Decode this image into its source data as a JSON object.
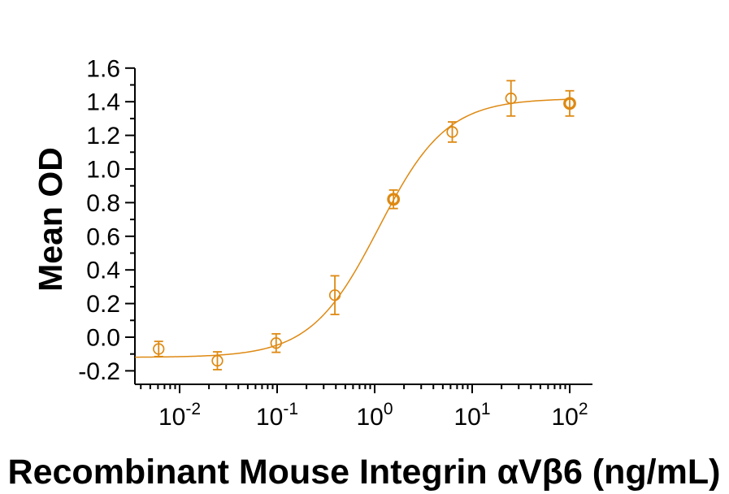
{
  "chart_data": {
    "type": "scatter",
    "subtype": "dose-response-curve",
    "title": "",
    "xlabel": "Recombinant Mouse Integrin αVβ6 (ng/mL)",
    "ylabel": "Mean OD",
    "x_scale": "log",
    "y_scale": "linear",
    "xlim_log10": [
      -2.46,
      2.23
    ],
    "ylim": [
      -0.32,
      1.6
    ],
    "grid": false,
    "legend": null,
    "y_ticks": {
      "major_values": [
        -0.2,
        0.0,
        0.2,
        0.4,
        0.6,
        0.8,
        1.0,
        1.2,
        1.4,
        1.6
      ],
      "major_labels": [
        "-0.2",
        "0.0",
        "0.2",
        "0.4",
        "0.6",
        "0.8",
        "1.0",
        "1.2",
        "1.4",
        "1.6"
      ],
      "minor_values": [
        -0.1,
        0.1,
        0.3,
        0.5,
        0.7,
        0.9,
        1.1,
        1.3,
        1.5
      ]
    },
    "x_ticks": {
      "base": "10",
      "major_exponents": [
        "-2",
        "-1",
        "0",
        "1",
        "2"
      ],
      "major_values": [
        0.01,
        0.1,
        1,
        10,
        100
      ],
      "minor_multiples": [
        2,
        3,
        4,
        5,
        6,
        7,
        8,
        9
      ],
      "minor_decades": [
        -3,
        -2,
        -1,
        0,
        1
      ]
    },
    "points": [
      {
        "x": 0.0061,
        "y": -0.07,
        "err": 0.045,
        "bold": false
      },
      {
        "x": 0.0244,
        "y": -0.14,
        "err": 0.053,
        "bold": false
      },
      {
        "x": 0.0977,
        "y": -0.035,
        "err": 0.055,
        "bold": false
      },
      {
        "x": 0.391,
        "y": 0.25,
        "err": 0.115,
        "bold": false
      },
      {
        "x": 1.56,
        "y": 0.82,
        "err": 0.055,
        "bold": true
      },
      {
        "x": 6.25,
        "y": 1.22,
        "err": 0.06,
        "bold": false
      },
      {
        "x": 25,
        "y": 1.42,
        "err": 0.105,
        "bold": false
      },
      {
        "x": 100,
        "y": 1.39,
        "err": 0.075,
        "bold": true
      }
    ],
    "fit_curve": {
      "model": "4PL",
      "bottom": -0.12,
      "top": 1.42,
      "ec50": 1.1,
      "hill": 1.25,
      "x_start": 0.0035,
      "x_end": 100
    },
    "colors": {
      "series": "#DE8912",
      "axis": "#000000",
      "text": "#000000",
      "background": "#ffffff"
    }
  }
}
